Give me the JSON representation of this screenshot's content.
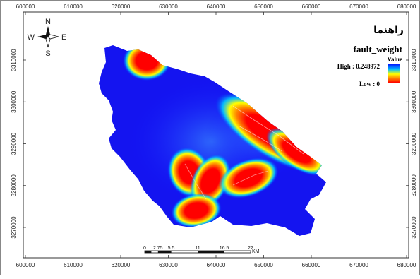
{
  "map": {
    "x_ticks": [
      "600000",
      "610000",
      "620000",
      "630000",
      "640000",
      "650000",
      "660000",
      "670000",
      "680000"
    ],
    "y_ticks": [
      "3310000",
      "3300000",
      "3290000",
      "3280000",
      "3270000"
    ]
  },
  "compass": {
    "n": "N",
    "s": "S",
    "e": "E",
    "w": "W"
  },
  "legend": {
    "heading": "راهنما",
    "layer": "fault_weight",
    "value_label": "Value",
    "high_label": "High : 0.248972",
    "low_label": "Low : 0",
    "colors": [
      "#0000ff",
      "#00c0ff",
      "#ffff00",
      "#ff8000",
      "#ff0000"
    ]
  },
  "scalebar": {
    "labels": [
      "0",
      "2.75",
      "5.5",
      "11",
      "16.5",
      "22"
    ],
    "unit": "KM"
  }
}
